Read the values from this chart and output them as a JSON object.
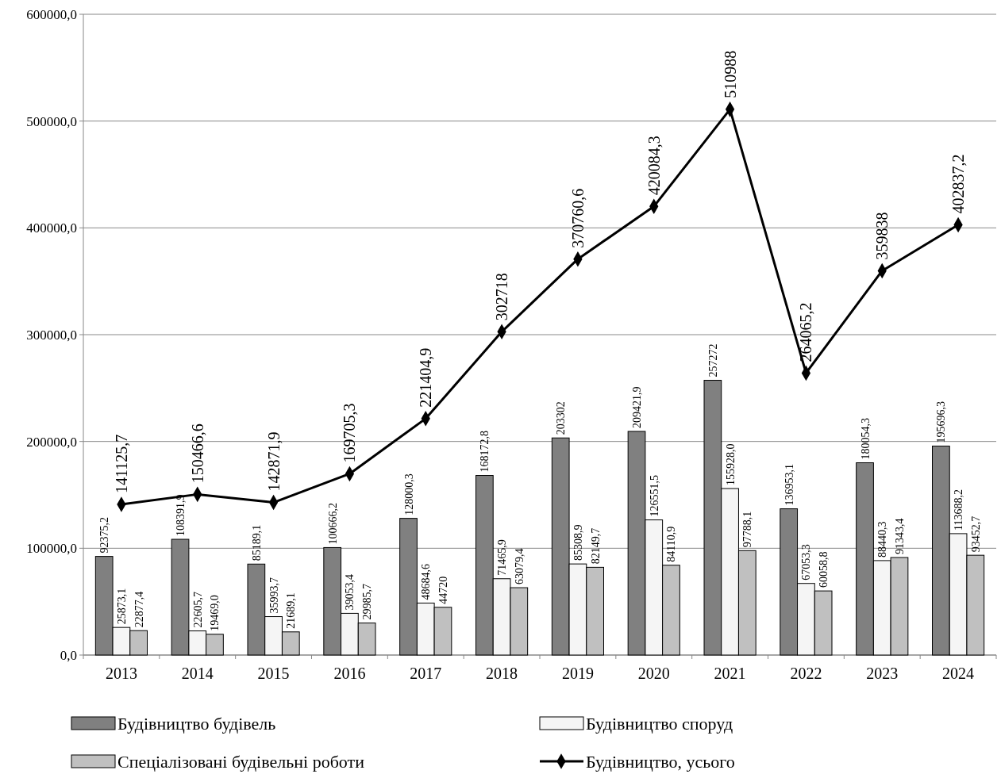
{
  "chart_data": {
    "type": "bar",
    "categories": [
      "2013",
      "2014",
      "2015",
      "2016",
      "2017",
      "2018",
      "2019",
      "2020",
      "2021",
      "2022",
      "2023",
      "2024"
    ],
    "series": [
      {
        "name": "Будівництво будівель",
        "color": "#808080",
        "values": [
          92375.2,
          108391.9,
          85189.1,
          100666.2,
          128000.3,
          168172.8,
          203302,
          209421.9,
          257272,
          136953.1,
          180054.3,
          195696.3
        ],
        "value_labels": [
          "92375,2",
          "108391,9",
          "85189,1",
          "100666,2",
          "128000,3",
          "168172,8",
          "203302",
          "209421,9",
          "257272",
          "136953,1",
          "180054,3",
          "195696,3"
        ]
      },
      {
        "name": "Будівництво споруд",
        "color": "#f5f5f5",
        "values": [
          25873.1,
          22605.7,
          35993.7,
          39053.4,
          48684.6,
          71465.9,
          85308.9,
          126551.5,
          155928.0,
          67053.3,
          88440.3,
          113688.2
        ],
        "value_labels": [
          "25873,1",
          "22605,7",
          "35993,7",
          "39053,4",
          "48684,6",
          "71465,9",
          "85308,9",
          "126551,5",
          "155928,0",
          "67053,3",
          "88440,3",
          "113688,2"
        ]
      },
      {
        "name": "Спеціалізовані будівельні роботи",
        "color": "#c0c0c0",
        "values": [
          22877.4,
          19469.0,
          21689.1,
          29985.7,
          44720,
          63079.4,
          82149.7,
          84110.9,
          97788.1,
          60058.8,
          91343.4,
          93452.7
        ],
        "value_labels": [
          "22877,4",
          "19469,0",
          "21689,1",
          "29985,7",
          "44720",
          "63079,4",
          "82149,7",
          "84110,9",
          "97788,1",
          "60058,8",
          "91343,4",
          "93452,7"
        ]
      },
      {
        "name": "Будівництво, усього",
        "type": "line",
        "color": "#000000",
        "marker": "diamond",
        "values": [
          141125.7,
          150466.6,
          142871.9,
          169705.3,
          221404.9,
          302718,
          370760.6,
          420084.3,
          510988,
          264065.2,
          359838,
          402837.2
        ],
        "value_labels": [
          "141125,7",
          "150466,6",
          "142871,9",
          "169705,3",
          "221404,9",
          "302718",
          "370760,6",
          "420084,3",
          "510988",
          "264065,2",
          "359838",
          "402837,2"
        ]
      }
    ],
    "ylim": [
      0,
      600000
    ],
    "yticks": [
      {
        "value": 0,
        "label": "0,0"
      },
      {
        "value": 100000,
        "label": "100000,0"
      },
      {
        "value": 200000,
        "label": "200000,0"
      },
      {
        "value": 300000,
        "label": "300000,0"
      },
      {
        "value": 400000,
        "label": "400000,0"
      },
      {
        "value": 500000,
        "label": "500000,0"
      },
      {
        "value": 600000,
        "label": "600000,0"
      }
    ],
    "grid": "y",
    "legend": "bottom"
  }
}
